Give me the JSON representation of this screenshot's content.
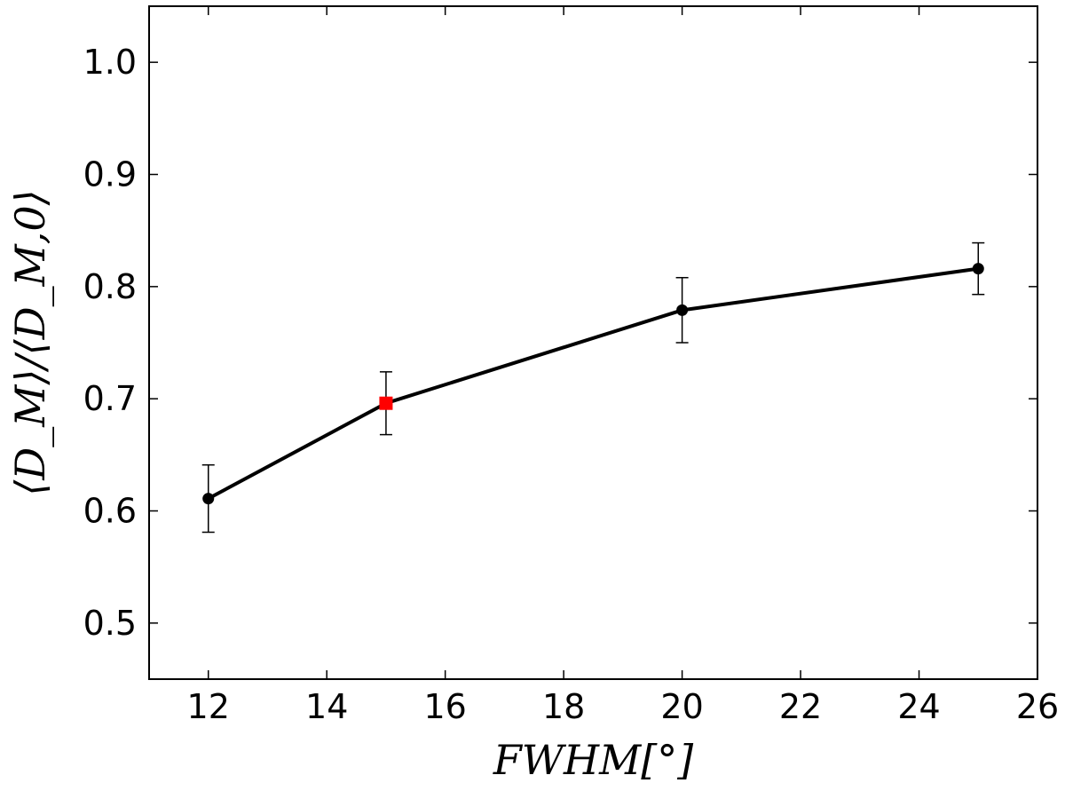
{
  "chart_data": {
    "type": "line",
    "title": "",
    "xlabel": "FWHM[°]",
    "ylabel": "⟨D_M⟩/⟨D_M,0⟩",
    "xlim": [
      11,
      26
    ],
    "ylim": [
      0.45,
      1.05
    ],
    "xticks": [
      12,
      14,
      16,
      18,
      20,
      22,
      24,
      26
    ],
    "yticks": [
      0.5,
      0.6,
      0.7,
      0.8,
      0.9,
      1.0
    ],
    "xtick_labels": [
      "12",
      "14",
      "16",
      "18",
      "20",
      "22",
      "24",
      "26"
    ],
    "ytick_labels": [
      "0.5",
      "0.6",
      "0.7",
      "0.8",
      "0.9",
      "1.0"
    ],
    "grid": false,
    "series": [
      {
        "x": [
          12,
          15,
          20,
          25
        ],
        "y": [
          0.611,
          0.696,
          0.779,
          0.816
        ],
        "yerr": [
          0.03,
          0.028,
          0.029,
          0.023
        ],
        "color": "#000000",
        "marker": "circle"
      }
    ],
    "highlight": {
      "x": 15,
      "y": 0.696,
      "color": "#ff0000",
      "marker": "square"
    }
  }
}
